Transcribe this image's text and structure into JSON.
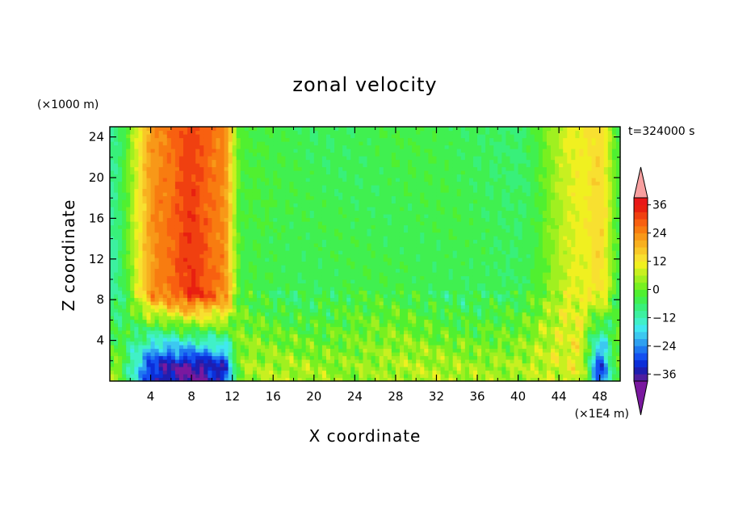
{
  "chart_data": {
    "type": "heatmap",
    "title": "zonal velocity",
    "xlabel": "X coordinate",
    "ylabel": "Z coordinate",
    "x_unit": "(×1E4 m)",
    "y_unit": "(×1000 m)",
    "time_label": "t=324000 s",
    "xlim": [
      0,
      50
    ],
    "ylim": [
      0,
      25
    ],
    "x_ticks": [
      4,
      8,
      12,
      16,
      20,
      24,
      28,
      32,
      36,
      40,
      44,
      48
    ],
    "y_ticks": [
      4,
      8,
      12,
      16,
      20,
      24
    ],
    "colorbar": {
      "levels": [
        -42,
        -39,
        -36,
        -33,
        -30,
        -27,
        -24,
        -21,
        -18,
        -15,
        -12,
        -9,
        -6,
        -3,
        0,
        3,
        6,
        9,
        12,
        15,
        18,
        21,
        24,
        27,
        30,
        33,
        36,
        39,
        42
      ],
      "tick_labels": [
        "36",
        "24",
        "12",
        "0",
        "−12",
        "−24",
        "−36"
      ],
      "tick_values": [
        36,
        24,
        12,
        0,
        -12,
        -24,
        -36
      ],
      "colors": [
        "#7a189f",
        "#4e1ea0",
        "#1e1eb0",
        "#0c2ed8",
        "#1450f0",
        "#1e78f0",
        "#2ea0f0",
        "#3cc8f0",
        "#40e8f0",
        "#40f0c8",
        "#3cf0a0",
        "#38f07a",
        "#40f050",
        "#50f030",
        "#78f020",
        "#a0f020",
        "#c8f020",
        "#f0f020",
        "#f8e030",
        "#f8c828",
        "#f8b020",
        "#f89818",
        "#f87c10",
        "#f86010",
        "#f04010",
        "#e82010",
        "#e81818",
        "#f8a0a0"
      ]
    },
    "field_description_points": {
      "x": [
        0,
        5,
        8,
        11,
        13,
        20,
        30,
        40,
        46,
        48,
        50
      ],
      "upper_values": [
        -10,
        25,
        32,
        25,
        -3,
        -5,
        -4,
        -6,
        10,
        14,
        -3
      ],
      "lower_values": [
        2,
        -34,
        -37,
        -33,
        3,
        5,
        4,
        6,
        8,
        -30,
        2
      ]
    }
  }
}
